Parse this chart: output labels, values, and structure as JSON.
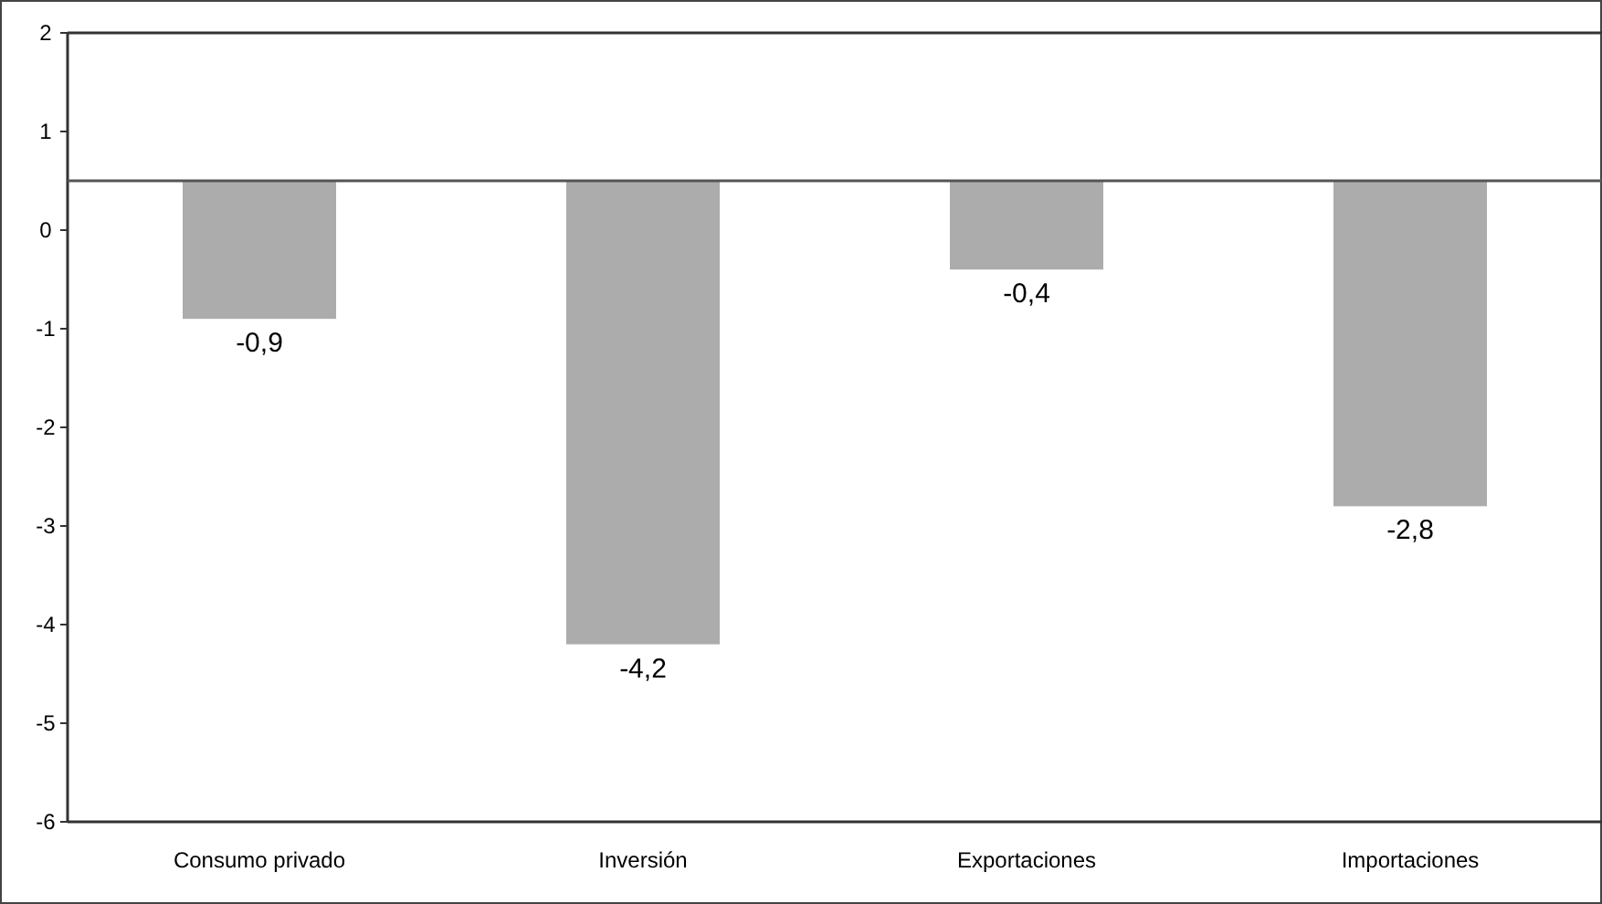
{
  "chart_data": {
    "type": "bar",
    "categories": [
      "Consumo privado",
      "Inversión",
      "Exportaciones",
      "Importaciones"
    ],
    "values": [
      -1.4,
      -4.7,
      -0.9,
      -3.3
    ],
    "base": [
      0.5,
      0.5,
      0.5,
      0.5
    ],
    "value_labels": [
      "-0,9",
      "-4,2",
      "-0,4",
      "-2,8"
    ],
    "color": "#acacac",
    "ylim": [
      -6,
      2
    ],
    "yticks": [
      -6,
      -5,
      -4,
      -3,
      -2,
      -1,
      0,
      1,
      2
    ],
    "grid": false,
    "ref_lines": [
      {
        "axis": "y",
        "value": 0.5,
        "color": "#555555"
      }
    ]
  }
}
